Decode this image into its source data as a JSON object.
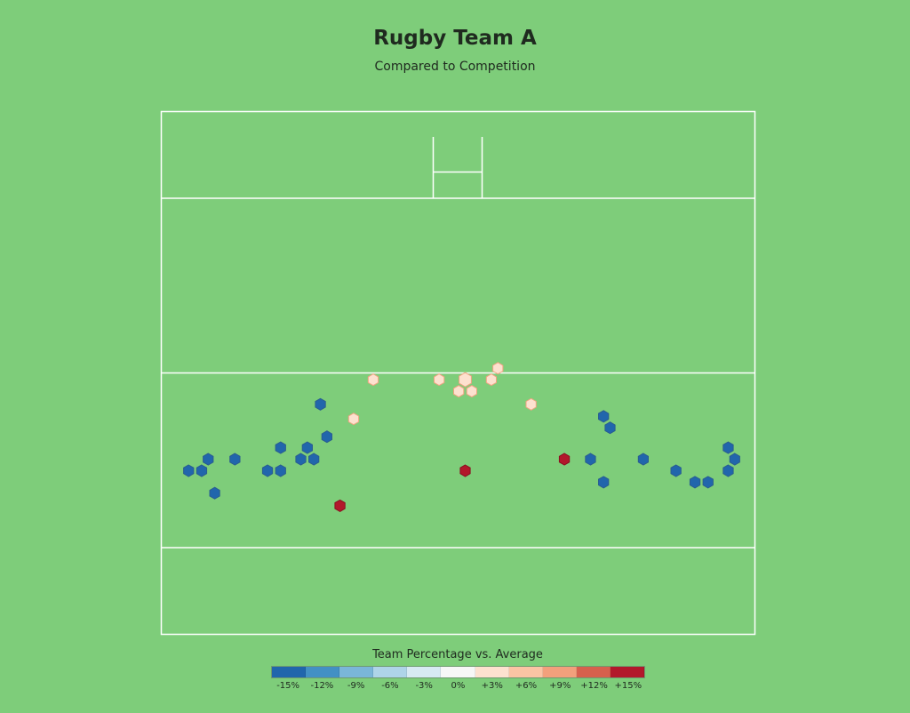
{
  "title": "Rugby Team A",
  "subtitle": "Compared to Competition",
  "legend": {
    "title": "Team Percentage vs. Average",
    "bins": [
      {
        "label": "-15%",
        "color": "#2166ac"
      },
      {
        "label": "-12%",
        "color": "#4390c4"
      },
      {
        "label": "-9%",
        "color": "#7ab6d8"
      },
      {
        "label": "-6%",
        "color": "#aed4e8"
      },
      {
        "label": "-3%",
        "color": "#d7eaf3"
      },
      {
        "label": "0%",
        "color": "#f7f7f7"
      },
      {
        "label": "+3%",
        "color": "#fde1cf"
      },
      {
        "label": "+6%",
        "color": "#fbc4a4"
      },
      {
        "label": "+9%",
        "color": "#f2a07c"
      },
      {
        "label": "+12%",
        "color": "#d6604d"
      },
      {
        "label": "+15%",
        "color": "#b2182b"
      }
    ]
  },
  "colors": {
    "background": "#7ecd7a",
    "lines": "#ffffff",
    "positive_fill": "#b2182b",
    "negative_fill": "#2166ac",
    "neutral_fill": "#fde1cf"
  },
  "chart_data": {
    "type": "heatmap",
    "title": "Rugby Team A",
    "subtitle": "Compared to Competition",
    "legend_title": "Team Percentage vs. Average",
    "legend_placement": "bottom",
    "x_range": [
      0,
      100
    ],
    "y_range": [
      0,
      100
    ],
    "points": [
      {
        "x": 4.6,
        "y": 68.7,
        "value": -15
      },
      {
        "x": 6.8,
        "y": 68.7,
        "value": -15
      },
      {
        "x": 7.9,
        "y": 66.5,
        "value": -15
      },
      {
        "x": 9.0,
        "y": 73.0,
        "value": -15
      },
      {
        "x": 12.4,
        "y": 66.5,
        "value": -15
      },
      {
        "x": 17.9,
        "y": 68.7,
        "value": -15
      },
      {
        "x": 20.1,
        "y": 68.7,
        "value": -15
      },
      {
        "x": 20.1,
        "y": 64.3,
        "value": -15
      },
      {
        "x": 23.5,
        "y": 66.5,
        "value": -15
      },
      {
        "x": 24.6,
        "y": 64.3,
        "value": -15
      },
      {
        "x": 25.7,
        "y": 66.5,
        "value": -15
      },
      {
        "x": 26.8,
        "y": 56.0,
        "value": -15
      },
      {
        "x": 27.9,
        "y": 62.2,
        "value": -15
      },
      {
        "x": 30.1,
        "y": 75.4,
        "value": 15
      },
      {
        "x": 32.4,
        "y": 58.8,
        "value": 3
      },
      {
        "x": 35.7,
        "y": 51.3,
        "value": 3
      },
      {
        "x": 46.8,
        "y": 51.3,
        "value": 3
      },
      {
        "x": 50.1,
        "y": 53.5,
        "value": 3
      },
      {
        "x": 51.2,
        "y": 51.3,
        "value": 3
      },
      {
        "x": 52.3,
        "y": 53.5,
        "value": 3
      },
      {
        "x": 51.2,
        "y": 68.7,
        "value": 15
      },
      {
        "x": 55.6,
        "y": 51.3,
        "value": 3
      },
      {
        "x": 56.7,
        "y": 49.1,
        "value": 3
      },
      {
        "x": 62.3,
        "y": 56.0,
        "value": 3
      },
      {
        "x": 67.9,
        "y": 66.5,
        "value": 15
      },
      {
        "x": 72.3,
        "y": 66.5,
        "value": -15
      },
      {
        "x": 74.5,
        "y": 58.3,
        "value": -15
      },
      {
        "x": 74.5,
        "y": 70.9,
        "value": -15
      },
      {
        "x": 75.6,
        "y": 60.5,
        "value": -15
      },
      {
        "x": 81.2,
        "y": 66.5,
        "value": -15
      },
      {
        "x": 86.7,
        "y": 68.7,
        "value": -15
      },
      {
        "x": 89.9,
        "y": 70.9,
        "value": -15
      },
      {
        "x": 92.1,
        "y": 70.9,
        "value": -15
      },
      {
        "x": 95.5,
        "y": 64.3,
        "value": -15
      },
      {
        "x": 95.5,
        "y": 68.7,
        "value": -15
      },
      {
        "x": 96.6,
        "y": 66.5,
        "value": -15
      }
    ]
  }
}
